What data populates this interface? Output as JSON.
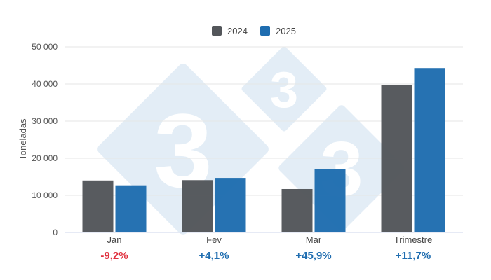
{
  "chart_data": {
    "type": "bar",
    "title": "",
    "xlabel": "",
    "ylabel": "Toneladas",
    "ylim": [
      0,
      50000
    ],
    "yticks": [
      0,
      10000,
      20000,
      30000,
      40000,
      50000
    ],
    "ytick_labels": [
      "0",
      "10 000",
      "20 000",
      "30 000",
      "40 000",
      "50 000"
    ],
    "grid": true,
    "legend_position": "top",
    "categories": [
      "Jan",
      "Fev",
      "Mar",
      "Trimestre"
    ],
    "series": [
      {
        "name": "2024",
        "color": "#53565a",
        "values": [
          14000,
          14100,
          11700,
          39700
        ]
      },
      {
        "name": "2025",
        "color": "#1f6db0",
        "values": [
          12700,
          14700,
          17100,
          44300
        ]
      }
    ],
    "annotations": [
      {
        "category": "Jan",
        "text": "-9,2%",
        "color": "#e0313f"
      },
      {
        "category": "Fev",
        "text": "+4,1%",
        "color": "#1f6db0"
      },
      {
        "category": "Mar",
        "text": "+45,9%",
        "color": "#1f6db0"
      },
      {
        "category": "Trimestre",
        "text": "+11,7%",
        "color": "#1f6db0"
      }
    ]
  },
  "watermark": {
    "glyph": "3",
    "color": "#e3edf6"
  }
}
